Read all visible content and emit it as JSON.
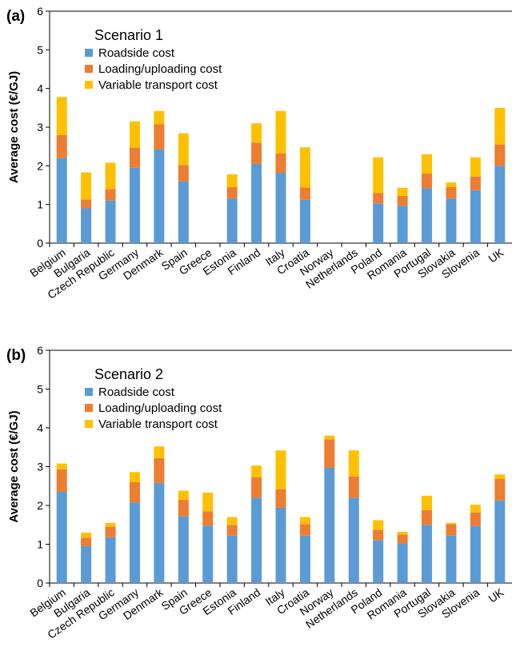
{
  "colors": {
    "roadside": "#5B9BD5",
    "loading": "#ED7D31",
    "variable": "#FFC000",
    "axis": "#000000"
  },
  "chart_data": [
    {
      "type": "bar",
      "stacked": true,
      "panel_label": "(a)",
      "title": "Scenario 1",
      "ylabel": "Average cost (€/GJ)",
      "xlabel": "",
      "ylim": [
        0,
        6
      ],
      "yticks": [
        "0",
        "1",
        "2",
        "3",
        "4",
        "5",
        "6"
      ],
      "legend_position": "top-left",
      "categories": [
        "Belgium",
        "Bulgaria",
        "Czech Republic",
        "Germany",
        "Denmark",
        "Spain",
        "Greece",
        "Estonia",
        "Finland",
        "Italy",
        "Croatia",
        "Norway",
        "Netherlands",
        "Poland",
        "Romania",
        "Portugal",
        "Slovakia",
        "Slovenia",
        "UK"
      ],
      "series": [
        {
          "name": "Roadside cost",
          "values": [
            2.2,
            0.9,
            1.1,
            1.95,
            2.42,
            1.6,
            0,
            1.15,
            2.05,
            1.82,
            1.12,
            0,
            0,
            1.03,
            0.97,
            1.42,
            1.15,
            1.37,
            2.0
          ]
        },
        {
          "name": "Loading/uploading cost",
          "values": [
            0.6,
            0.23,
            0.3,
            0.52,
            0.66,
            0.42,
            0,
            0.3,
            0.55,
            0.5,
            0.32,
            0,
            0,
            0.27,
            0.25,
            0.38,
            0.3,
            0.35,
            0.55
          ]
        },
        {
          "name": "Variable transport cost",
          "values": [
            0.98,
            0.7,
            0.68,
            0.68,
            0.34,
            0.82,
            0,
            0.33,
            0.5,
            1.1,
            1.04,
            0,
            0,
            0.92,
            0.21,
            0.5,
            0.12,
            0.5,
            0.95
          ]
        }
      ]
    },
    {
      "type": "bar",
      "stacked": true,
      "panel_label": "(b)",
      "title": "Scenario 2",
      "ylabel": "Average cost (€/GJ)",
      "xlabel": "",
      "ylim": [
        0,
        6
      ],
      "yticks": [
        "0",
        "1",
        "2",
        "3",
        "4",
        "5",
        "6"
      ],
      "legend_position": "top-left",
      "categories": [
        "Belgium",
        "Bulgaria",
        "Czech Republic",
        "Germany",
        "Denmark",
        "Spain",
        "Greece",
        "Estonia",
        "Finland",
        "Italy",
        "Croatia",
        "Norway",
        "Netherlands",
        "Poland",
        "Romania",
        "Portugal",
        "Slovakia",
        "Slovenia",
        "UK"
      ],
      "series": [
        {
          "name": "Roadside cost",
          "values": [
            2.35,
            0.95,
            1.18,
            2.08,
            2.58,
            1.72,
            1.48,
            1.22,
            2.2,
            1.94,
            1.22,
            2.97,
            2.2,
            1.1,
            1.02,
            1.5,
            1.22,
            1.47,
            2.13
          ]
        },
        {
          "name": "Loading/uploading cost",
          "values": [
            0.58,
            0.22,
            0.27,
            0.52,
            0.64,
            0.43,
            0.37,
            0.28,
            0.53,
            0.48,
            0.3,
            0.73,
            0.55,
            0.27,
            0.23,
            0.38,
            0.3,
            0.35,
            0.55
          ]
        },
        {
          "name": "Variable transport cost",
          "values": [
            0.15,
            0.13,
            0.1,
            0.26,
            0.3,
            0.23,
            0.48,
            0.2,
            0.3,
            1.0,
            0.18,
            0.1,
            0.67,
            0.25,
            0.07,
            0.37,
            0.03,
            0.2,
            0.12
          ]
        }
      ]
    }
  ]
}
